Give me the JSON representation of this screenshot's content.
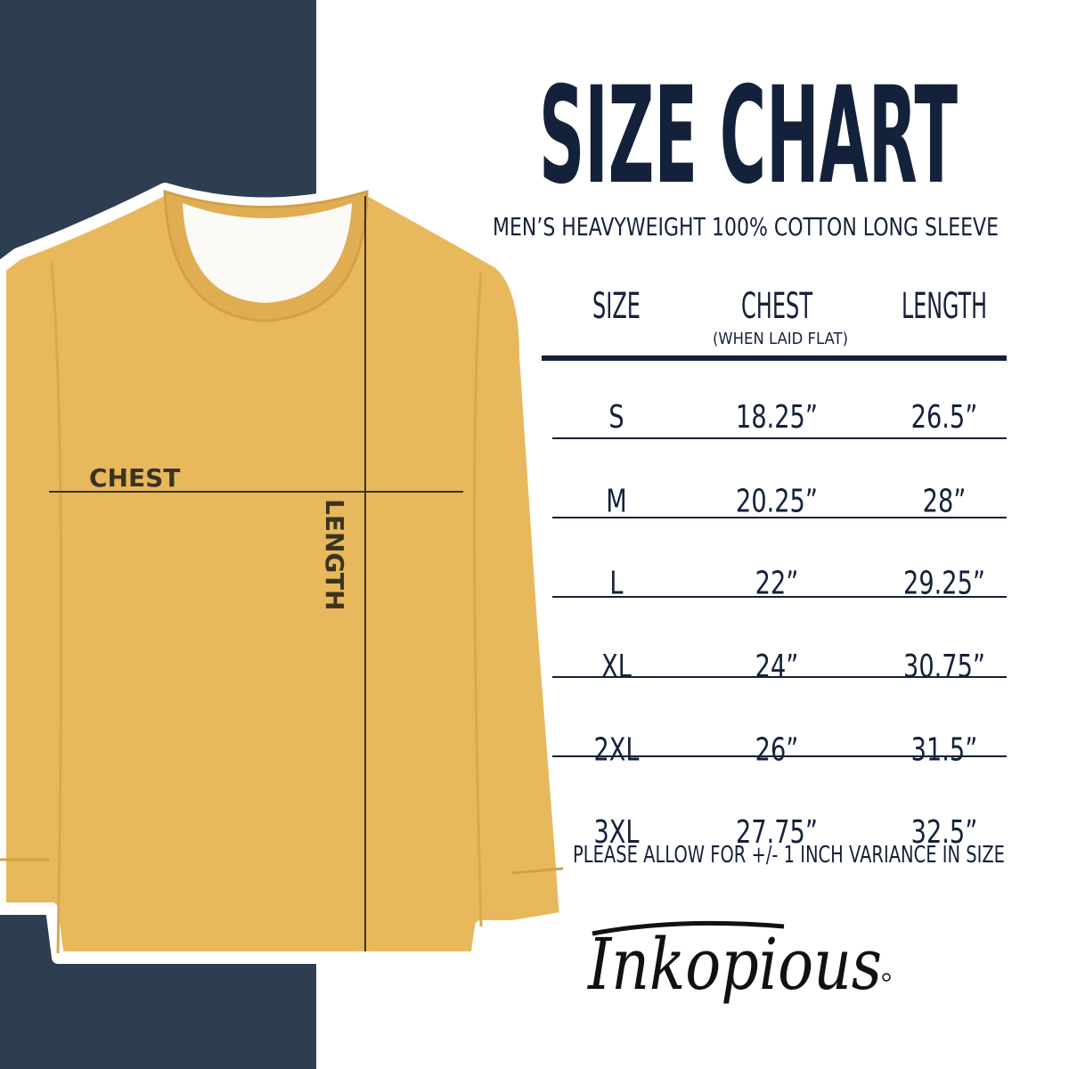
{
  "title": "SIZE CHART",
  "subtitle": "MEN’S HEAVYWEIGHT 100% COTTON LONG SLEEVE",
  "table": {
    "headers": {
      "size": "SIZE",
      "chest": "CHEST",
      "chest_note": "(WHEN LAID FLAT)",
      "length": "LENGTH"
    },
    "rows": [
      {
        "size": "S",
        "chest": "18.25”",
        "length": "26.5”"
      },
      {
        "size": "M",
        "chest": "20.25”",
        "length": "28”"
      },
      {
        "size": "L",
        "chest": "22”",
        "length": "29.25”"
      },
      {
        "size": "XL",
        "chest": "24”",
        "length": "30.75”"
      },
      {
        "size": "2XL",
        "chest": "26”",
        "length": "31.5”"
      },
      {
        "size": "3XL",
        "chest": "27.75”",
        "length": "32.5”"
      }
    ]
  },
  "footnote": "PLEASE ALLOW FOR +/- 1 INCH VARIANCE IN SIZE",
  "shirt_labels": {
    "chest": "CHEST",
    "length": "LENGTH"
  },
  "brand": "Inkopious",
  "colors": {
    "navy": "#2c3e50",
    "text": "#14213a",
    "shirt": "#e8b85c"
  }
}
